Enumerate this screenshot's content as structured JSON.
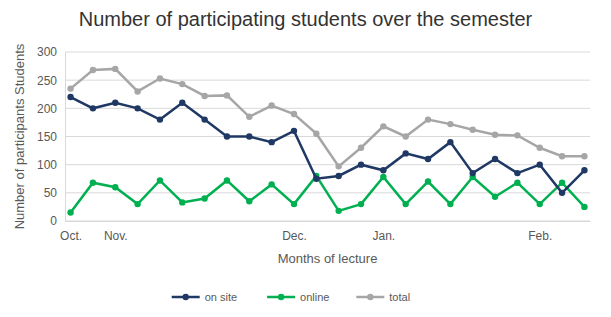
{
  "chart_data": {
    "type": "line",
    "title": "Number of participating students over the semester",
    "x_label": "Months of lecture",
    "y_label": "Number of participants Students",
    "categories": [
      "Oct.",
      null,
      "Nov.",
      null,
      null,
      null,
      null,
      null,
      null,
      null,
      "Dec.",
      null,
      null,
      null,
      "Jan.",
      null,
      null,
      null,
      null,
      null,
      null,
      "Feb.",
      null,
      null
    ],
    "series": [
      {
        "name": "on site",
        "color": "#1f3864",
        "marker": "circle",
        "values": [
          220,
          200,
          210,
          200,
          180,
          210,
          180,
          150,
          150,
          140,
          160,
          75,
          80,
          100,
          90,
          120,
          110,
          140,
          85,
          110,
          85,
          100,
          50,
          90
        ]
      },
      {
        "name": "online",
        "color": "#00b050",
        "marker": "circle",
        "values": [
          15,
          68,
          60,
          30,
          72,
          33,
          40,
          72,
          35,
          65,
          30,
          80,
          18,
          30,
          78,
          30,
          70,
          30,
          78,
          43,
          68,
          30,
          68,
          25
        ]
      },
      {
        "name": "total",
        "color": "#a6a6a6",
        "marker": "circle",
        "values": [
          235,
          268,
          270,
          230,
          253,
          243,
          222,
          223,
          185,
          205,
          190,
          155,
          97,
          130,
          168,
          150,
          180,
          172,
          162,
          153,
          152,
          130,
          115,
          115
        ]
      }
    ],
    "ylim": [
      0,
      300
    ],
    "yticks": [
      0,
      50,
      100,
      150,
      200,
      250,
      300
    ],
    "grid": true,
    "legend": "bottom"
  }
}
